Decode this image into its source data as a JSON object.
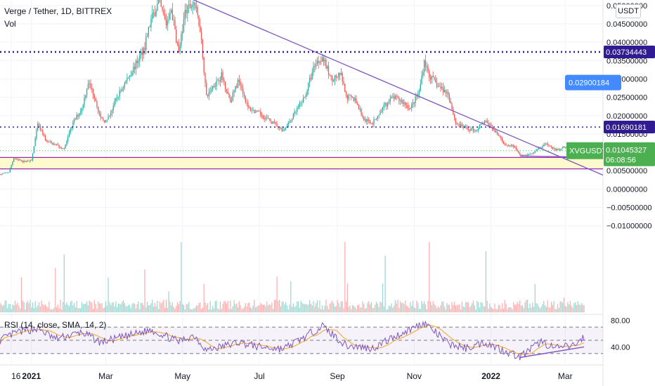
{
  "header": {
    "symbol_line": "Verge / Tether, 1D, BITTREX",
    "vol_label": "Vol",
    "currency_button": "USDT"
  },
  "rsi": {
    "label": "RSI (14, close, SMA, 14, 2)",
    "upper_band": 70,
    "lower_band": 30,
    "middle_band": 50,
    "tick_labels": [
      "80.00",
      "40.00"
    ]
  },
  "colors": {
    "up": "#26a69a",
    "down": "#ef5350",
    "trendline": "#7e57c2",
    "resistance_dotted": "#311b92",
    "support_zone": "#fff9c4",
    "support_line": "#9c27b0",
    "rsi_line": "#7e57c2",
    "rsi_sma": "#f5a623",
    "price_badge": "#4caf50",
    "blue_badge": "#448aff"
  },
  "chart_data": {
    "type": "candlestick",
    "title": "Verge / Tether, 1D, BITTREX",
    "x_tick_labels": [
      "16",
      "2021",
      "Mar",
      "May",
      "Jul",
      "Sep",
      "Nov",
      "2022",
      "Mar"
    ],
    "y_tick_labels": [
      "0.05000000",
      "0.04500000",
      "0.04000000",
      "0.03500000",
      "0.03000000",
      "0.02500000",
      "0.02000000",
      "0.01500000",
      "0.01000000",
      "0.00500000",
      "0.00000000",
      "−0.00500000",
      "−0.01000000"
    ],
    "y_ticks": [
      0.05,
      0.045,
      0.04,
      0.035,
      0.03,
      0.025,
      0.02,
      0.015,
      0.01,
      0.005,
      0,
      -0.005,
      -0.01
    ],
    "ylim": [
      -0.0135,
      0.0515
    ],
    "levels": [
      {
        "label": "0.02900184",
        "value": 0.02900184,
        "kind": "blue-badge"
      },
      {
        "label": "0.03734443",
        "value": 0.03734443,
        "kind": "dotted-resistance"
      },
      {
        "label": "0.01690181",
        "value": 0.01690181,
        "kind": "dotted-resistance"
      }
    ],
    "current_price": {
      "symbol": "XVGUSDT",
      "value": "0.01045327",
      "value_num": 0.01045327,
      "countdown": "06:08:56"
    },
    "support_zone": [
      0.0055,
      0.0086
    ],
    "trendline": [
      {
        "date": "2021-05-10",
        "value": 0.0515
      },
      {
        "date": "2022-03-31",
        "value": 0.0038
      }
    ],
    "price_path": [
      [
        "2020-12-07",
        0.004
      ],
      [
        "2020-12-14",
        0.0046
      ],
      [
        "2020-12-18",
        0.0085
      ],
      [
        "2020-12-25",
        0.0075
      ],
      [
        "2021-01-01",
        0.0078
      ],
      [
        "2021-01-06",
        0.0175
      ],
      [
        "2021-01-13",
        0.013
      ],
      [
        "2021-01-20",
        0.012
      ],
      [
        "2021-01-27",
        0.011
      ],
      [
        "2021-02-03",
        0.018
      ],
      [
        "2021-02-10",
        0.022
      ],
      [
        "2021-02-15",
        0.029
      ],
      [
        "2021-02-20",
        0.0255
      ],
      [
        "2021-02-25",
        0.019
      ],
      [
        "2021-03-02",
        0.0185
      ],
      [
        "2021-03-10",
        0.025
      ],
      [
        "2021-03-18",
        0.03
      ],
      [
        "2021-03-25",
        0.034
      ],
      [
        "2021-04-01",
        0.039
      ],
      [
        "2021-04-06",
        0.046
      ],
      [
        "2021-04-12",
        0.051
      ],
      [
        "2021-04-18",
        0.045
      ],
      [
        "2021-04-22",
        0.049
      ],
      [
        "2021-04-28",
        0.037
      ],
      [
        "2021-05-03",
        0.048
      ],
      [
        "2021-05-10",
        0.051
      ],
      [
        "2021-05-15",
        0.044
      ],
      [
        "2021-05-20",
        0.025
      ],
      [
        "2021-05-25",
        0.028
      ],
      [
        "2021-06-01",
        0.031
      ],
      [
        "2021-06-08",
        0.024
      ],
      [
        "2021-06-15",
        0.03
      ],
      [
        "2021-06-22",
        0.022
      ],
      [
        "2021-07-01",
        0.0205
      ],
      [
        "2021-07-10",
        0.0185
      ],
      [
        "2021-07-20",
        0.016
      ],
      [
        "2021-07-28",
        0.02
      ],
      [
        "2021-08-06",
        0.025
      ],
      [
        "2021-08-14",
        0.034
      ],
      [
        "2021-08-20",
        0.036
      ],
      [
        "2021-08-27",
        0.03
      ],
      [
        "2021-09-04",
        0.031
      ],
      [
        "2021-09-08",
        0.025
      ],
      [
        "2021-09-15",
        0.0245
      ],
      [
        "2021-09-22",
        0.019
      ],
      [
        "2021-09-29",
        0.018
      ],
      [
        "2021-10-07",
        0.022
      ],
      [
        "2021-10-15",
        0.025
      ],
      [
        "2021-10-22",
        0.024
      ],
      [
        "2021-10-29",
        0.022
      ],
      [
        "2021-11-05",
        0.0265
      ],
      [
        "2021-11-09",
        0.035
      ],
      [
        "2021-11-13",
        0.031
      ],
      [
        "2021-11-20",
        0.028
      ],
      [
        "2021-11-28",
        0.026
      ],
      [
        "2021-12-04",
        0.018
      ],
      [
        "2021-12-12",
        0.0165
      ],
      [
        "2021-12-20",
        0.016
      ],
      [
        "2021-12-27",
        0.0185
      ],
      [
        "2022-01-04",
        0.016
      ],
      [
        "2022-01-11",
        0.0125
      ],
      [
        "2022-01-20",
        0.0115
      ],
      [
        "2022-01-24",
        0.009
      ],
      [
        "2022-02-01",
        0.0095
      ],
      [
        "2022-02-07",
        0.011
      ],
      [
        "2022-02-14",
        0.0125
      ],
      [
        "2022-02-21",
        0.0105
      ],
      [
        "2022-03-01",
        0.0115
      ],
      [
        "2022-03-08",
        0.0095
      ],
      [
        "2022-03-16",
        0.0104
      ]
    ],
    "rsi_ylim": [
      18,
      85
    ],
    "rsi_path": [
      [
        "2020-12-07",
        50
      ],
      [
        "2020-12-20",
        62
      ],
      [
        "2021-01-06",
        68
      ],
      [
        "2021-01-20",
        52
      ],
      [
        "2021-02-10",
        62
      ],
      [
        "2021-02-25",
        47
      ],
      [
        "2021-03-15",
        55
      ],
      [
        "2021-04-06",
        66
      ],
      [
        "2021-04-28",
        48
      ],
      [
        "2021-05-10",
        58
      ],
      [
        "2021-05-20",
        35
      ],
      [
        "2021-06-15",
        47
      ],
      [
        "2021-07-01",
        40
      ],
      [
        "2021-07-20",
        37
      ],
      [
        "2021-08-06",
        55
      ],
      [
        "2021-08-20",
        72
      ],
      [
        "2021-09-08",
        42
      ],
      [
        "2021-09-29",
        38
      ],
      [
        "2021-10-15",
        54
      ],
      [
        "2021-11-09",
        77
      ],
      [
        "2021-11-28",
        45
      ],
      [
        "2021-12-12",
        38
      ],
      [
        "2021-12-27",
        47
      ],
      [
        "2022-01-11",
        35
      ],
      [
        "2022-01-24",
        25
      ],
      [
        "2022-02-10",
        48
      ],
      [
        "2022-02-21",
        38
      ],
      [
        "2022-03-08",
        42
      ],
      [
        "2022-03-16",
        55
      ]
    ],
    "rsi_divergence": [
      {
        "date": "2022-01-24",
        "value": 24
      },
      {
        "date": "2022-03-16",
        "value": 40
      }
    ],
    "price_divergence": [
      {
        "date": "2022-01-24",
        "value": 0.009
      },
      {
        "date": "2022-03-06",
        "value": 0.0088
      }
    ],
    "x_start": "2020-12-07",
    "x_end": "2022-03-31"
  }
}
